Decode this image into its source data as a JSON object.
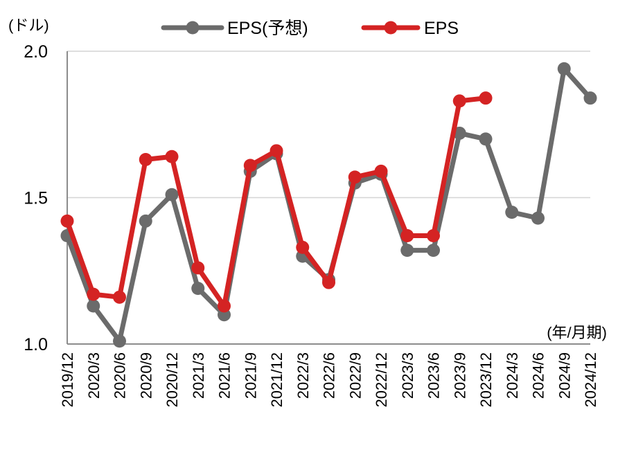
{
  "chart_data": {
    "type": "line",
    "unit_label": "(ドル)",
    "xlabel": "(年/月期)",
    "ylim": [
      1.0,
      2.0
    ],
    "yticks": [
      "1.0",
      "1.5",
      "2.0"
    ],
    "grid": true,
    "legend_position": "top-center",
    "categories": [
      "2019/12",
      "2020/3",
      "2020/6",
      "2020/9",
      "2020/12",
      "2021/3",
      "2021/6",
      "2021/9",
      "2021/12",
      "2022/3",
      "2022/6",
      "2022/9",
      "2022/12",
      "2023/3",
      "2023/6",
      "2023/9",
      "2023/12",
      "2024/3",
      "2024/6",
      "2024/9",
      "2024/12"
    ],
    "series": [
      {
        "name": "EPS(予想)",
        "color": "#6b6b6b",
        "values": [
          1.37,
          1.13,
          1.01,
          1.42,
          1.51,
          1.19,
          1.1,
          1.59,
          1.65,
          1.3,
          1.22,
          1.55,
          1.58,
          1.32,
          1.32,
          1.72,
          1.7,
          1.45,
          1.43,
          1.94,
          1.84
        ]
      },
      {
        "name": "EPS",
        "color": "#d42323",
        "values": [
          1.42,
          1.17,
          1.16,
          1.63,
          1.64,
          1.26,
          1.13,
          1.61,
          1.66,
          1.33,
          1.21,
          1.57,
          1.59,
          1.37,
          1.37,
          1.83,
          1.84,
          null,
          null,
          null,
          null
        ]
      }
    ]
  }
}
